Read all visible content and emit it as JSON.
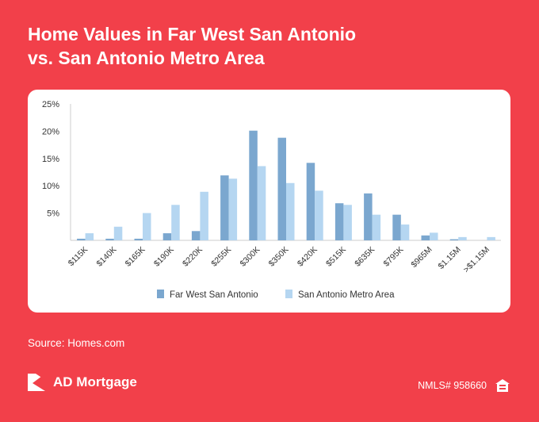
{
  "header": {
    "title_line1": "Home Values in Far West San Antonio",
    "title_line2": "vs. San Antonio Metro Area"
  },
  "chart_data": {
    "type": "bar",
    "categories": [
      "$115K",
      "$140K",
      "$165K",
      "$190K",
      "$220K",
      "$255K",
      "$300K",
      "$350K",
      "$420K",
      "$515K",
      "$635K",
      "$795K",
      "$965M",
      "$1.15M",
      ">$1.15M"
    ],
    "series": [
      {
        "name": "Far West San Antonio",
        "color": "#7ba7cf",
        "values": [
          0.3,
          0.3,
          0.3,
          1.3,
          1.7,
          11.9,
          20.1,
          18.8,
          14.2,
          6.8,
          8.6,
          4.7,
          0.9,
          0.2,
          0.0
        ]
      },
      {
        "name": "San Antonio Metro Area",
        "color": "#b5d6f1",
        "values": [
          1.3,
          2.5,
          5.0,
          6.5,
          8.9,
          11.3,
          13.6,
          10.5,
          9.1,
          6.5,
          4.7,
          2.9,
          1.4,
          0.6,
          0.6
        ]
      }
    ],
    "yticks": [
      "25%",
      "20%",
      "15%",
      "10%",
      "5%"
    ],
    "ylim": [
      0,
      25
    ],
    "grid": false,
    "legend_position": "bottom"
  },
  "source": "Source: Homes.com",
  "footer": {
    "brand": "AD Mortgage",
    "nmls": "NMLS# 958660",
    "logo_icon": "ad-mortgage-logo-icon",
    "eho_icon": "equal-housing-icon"
  },
  "colors": {
    "background": "#f2404a",
    "card": "#ffffff",
    "axis_text": "#333333"
  }
}
